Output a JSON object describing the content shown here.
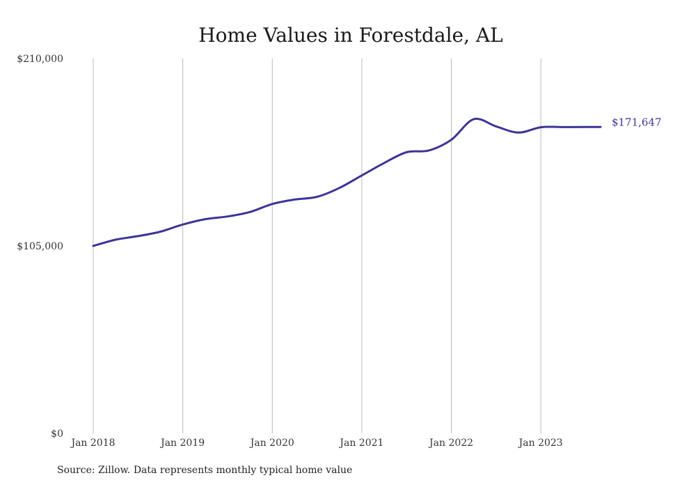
{
  "chart_data": {
    "type": "line",
    "title": "Home Values in Forestdale, AL",
    "xlabel": "",
    "ylabel": "",
    "x_axis_start": "2018-01",
    "ylim": [
      0,
      210000
    ],
    "y_ticks": [
      {
        "value": 0,
        "label": "$0"
      },
      {
        "value": 105000,
        "label": "$105,000"
      },
      {
        "value": 210000,
        "label": "$210,000"
      }
    ],
    "x_ticks": [
      {
        "value": "2018-01",
        "label": "Jan 2018"
      },
      {
        "value": "2019-01",
        "label": "Jan 2019"
      },
      {
        "value": "2020-01",
        "label": "Jan 2020"
      },
      {
        "value": "2021-01",
        "label": "Jan 2021"
      },
      {
        "value": "2022-01",
        "label": "Jan 2022"
      },
      {
        "value": "2023-01",
        "label": "Jan 2023"
      }
    ],
    "grid": {
      "vertical": true,
      "horizontal": false
    },
    "line_color": "#3b3597",
    "end_label": "$171,647",
    "series": [
      {
        "x": [
          "2018-01",
          "2018-04",
          "2018-07",
          "2018-10",
          "2019-01",
          "2019-04",
          "2019-07",
          "2019-10",
          "2020-01",
          "2020-04",
          "2020-07",
          "2020-10",
          "2021-01",
          "2021-04",
          "2021-07",
          "2021-10",
          "2022-01",
          "2022-04",
          "2022-07",
          "2022-10",
          "2023-01",
          "2023-04",
          "2023-07",
          "2023-09"
        ],
        "values": [
          105000,
          108500,
          110500,
          113000,
          117000,
          120000,
          121500,
          124000,
          128500,
          131000,
          132500,
          137500,
          144500,
          151500,
          157500,
          158500,
          164500,
          176000,
          172000,
          168500,
          171500,
          171600,
          171650,
          171647
        ]
      }
    ]
  },
  "source_note": "Source: Zillow. Data represents monthly typical home value"
}
